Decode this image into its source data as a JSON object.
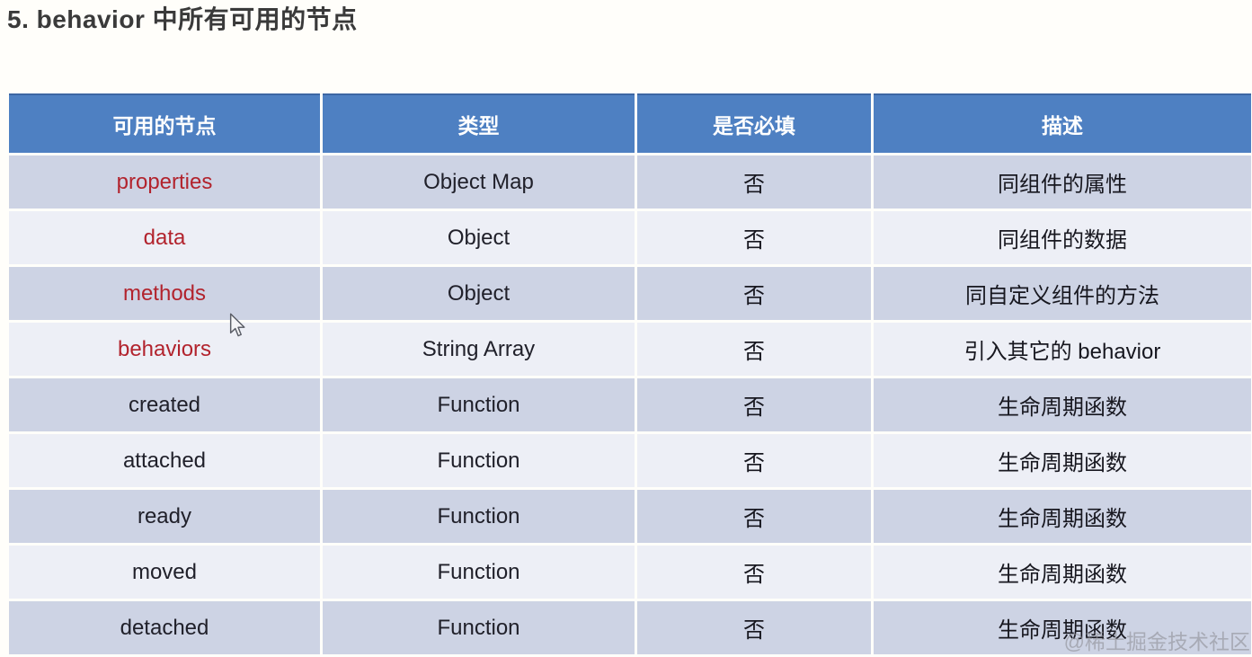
{
  "page": {
    "title": "5. behavior 中所有可用的节点"
  },
  "table": {
    "headers": [
      "可用的节点",
      "类型",
      "是否必填",
      "描述"
    ],
    "rows": [
      {
        "node": "properties",
        "type": "Object Map",
        "required": "否",
        "desc": "同组件的属性",
        "red": true
      },
      {
        "node": "data",
        "type": "Object",
        "required": "否",
        "desc": "同组件的数据",
        "red": true
      },
      {
        "node": "methods",
        "type": "Object",
        "required": "否",
        "desc": "同自定义组件的方法",
        "red": true
      },
      {
        "node": "behaviors",
        "type": "String Array",
        "required": "否",
        "desc": "引入其它的 behavior",
        "red": true
      },
      {
        "node": "created",
        "type": "Function",
        "required": "否",
        "desc": "生命周期函数",
        "red": false
      },
      {
        "node": "attached",
        "type": "Function",
        "required": "否",
        "desc": "生命周期函数",
        "red": false
      },
      {
        "node": "ready",
        "type": "Function",
        "required": "否",
        "desc": "生命周期函数",
        "red": false
      },
      {
        "node": "moved",
        "type": "Function",
        "required": "否",
        "desc": "生命周期函数",
        "red": false
      },
      {
        "node": "detached",
        "type": "Function",
        "required": "否",
        "desc": "生命周期函数",
        "red": false
      }
    ]
  },
  "watermark": {
    "text": "@稀土掘金技术社区"
  },
  "colors": {
    "header_bg": "#4e80c2",
    "row_dark": "#cdd3e4",
    "row_light": "#edeff6",
    "node_red": "#b2232d"
  }
}
